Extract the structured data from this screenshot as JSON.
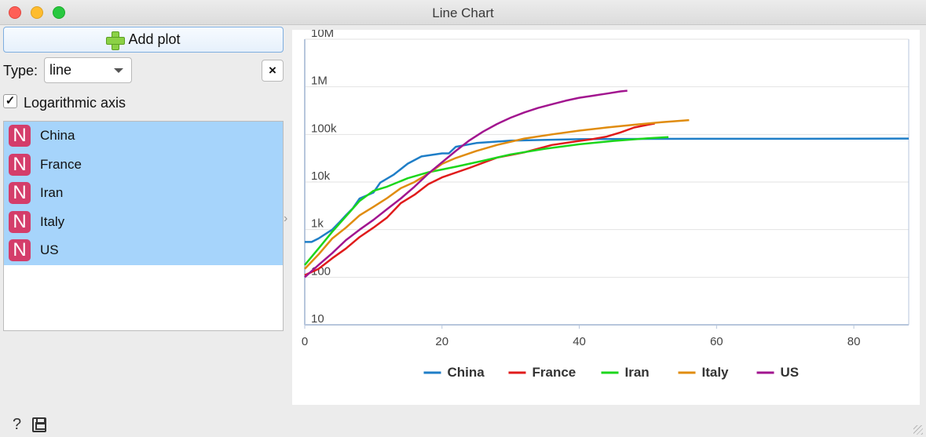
{
  "window": {
    "title": "Line Chart"
  },
  "controls": {
    "add_plot_label": "Add plot",
    "type_label": "Type:",
    "type_value": "line",
    "remove_label": "×",
    "log_axis_checked": "✓",
    "log_axis_label": "Logarithmic axis"
  },
  "variables": [
    {
      "icon": "N",
      "label": "China"
    },
    {
      "icon": "N",
      "label": "France"
    },
    {
      "icon": "N",
      "label": "Iran"
    },
    {
      "icon": "N",
      "label": "Italy"
    },
    {
      "icon": "N",
      "label": "US"
    }
  ],
  "footer": {
    "help_icon": "?"
  },
  "chart_data": {
    "type": "line",
    "title": "",
    "xlabel": "",
    "ylabel": "",
    "yscale": "log",
    "xlim": [
      0,
      88
    ],
    "ylim": [
      10,
      10000000
    ],
    "x_ticks": [
      0,
      20,
      40,
      60,
      80
    ],
    "x_tick_labels": [
      "0",
      "20",
      "40",
      "60",
      "80"
    ],
    "y_ticks": [
      10,
      100,
      1000,
      10000,
      100000,
      1000000,
      10000000
    ],
    "y_tick_labels": [
      "10",
      "100",
      "1k",
      "10k",
      "100k",
      "1M",
      "10M"
    ],
    "grid": true,
    "legend_position": "bottom",
    "series": [
      {
        "name": "China",
        "color": "#1f7ec7",
        "x": [
          0,
          1,
          2,
          4,
          5,
          6,
          7,
          8,
          10,
          11,
          13,
          15,
          17,
          20,
          21,
          22,
          25,
          30,
          40,
          50,
          60,
          70,
          80,
          88
        ],
        "y": [
          550,
          550,
          650,
          1000,
          1400,
          2000,
          2800,
          4500,
          6000,
          9700,
          14400,
          24300,
          34500,
          40000,
          40000,
          55000,
          66000,
          74000,
          79500,
          80700,
          80900,
          81000,
          81500,
          82000
        ]
      },
      {
        "name": "France",
        "color": "#e01b1b",
        "x": [
          0,
          2,
          4,
          6,
          8,
          10,
          12,
          14,
          16,
          18,
          20,
          24,
          28,
          32,
          36,
          40,
          42,
          44,
          46,
          48,
          50,
          51
        ],
        "y": [
          110,
          150,
          250,
          400,
          700,
          1100,
          1800,
          3600,
          5400,
          9000,
          12500,
          19800,
          32500,
          42000,
          60000,
          73000,
          80000,
          90000,
          110000,
          140000,
          160000,
          170000
        ]
      },
      {
        "name": "Iran",
        "color": "#1cd61c",
        "x": [
          0,
          2,
          4,
          6,
          8,
          10,
          12,
          15,
          18,
          22,
          26,
          30,
          35,
          40,
          45,
          50,
          53
        ],
        "y": [
          180,
          400,
          900,
          1900,
          4000,
          6500,
          8000,
          12000,
          16000,
          21000,
          28000,
          38000,
          50000,
          62000,
          73000,
          83000,
          88000
        ]
      },
      {
        "name": "Italy",
        "color": "#e08c0f",
        "x": [
          0,
          2,
          4,
          6,
          8,
          10,
          12,
          14,
          16,
          18,
          20,
          22,
          25,
          28,
          32,
          36,
          40,
          44,
          48,
          52,
          56
        ],
        "y": [
          150,
          300,
          650,
          1100,
          2000,
          3000,
          4600,
          7400,
          10000,
          15000,
          24000,
          32000,
          45000,
          60000,
          82000,
          100000,
          120000,
          140000,
          160000,
          180000,
          200000
        ]
      },
      {
        "name": "US",
        "color": "#a2158f",
        "x": [
          0,
          2,
          4,
          6,
          8,
          10,
          12,
          14,
          16,
          18,
          20,
          22,
          24,
          26,
          28,
          30,
          32,
          34,
          36,
          38,
          40,
          42,
          44,
          46,
          47
        ],
        "y": [
          100,
          180,
          320,
          600,
          1000,
          1600,
          2700,
          4500,
          8000,
          15000,
          26000,
          45000,
          75000,
          115000,
          165000,
          225000,
          290000,
          360000,
          430000,
          510000,
          590000,
          650000,
          720000,
          800000,
          830000
        ]
      }
    ]
  }
}
